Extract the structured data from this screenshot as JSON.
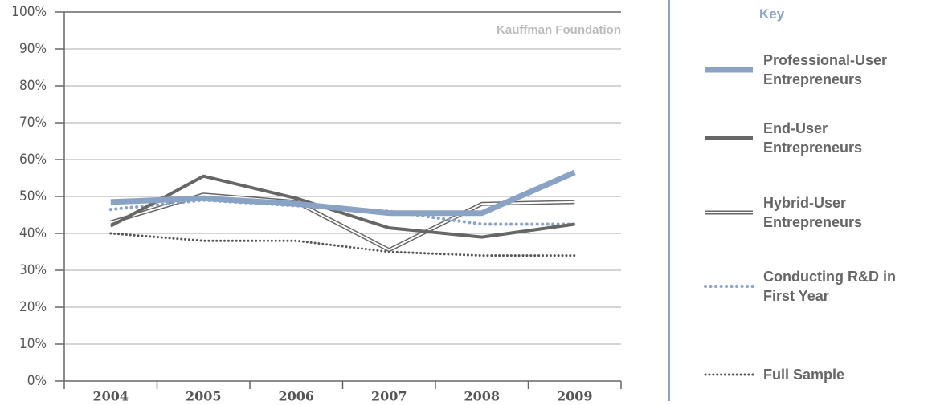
{
  "chart_data": {
    "type": "line",
    "annotation": "Kauffman Foundation",
    "legend_title": "Key",
    "categories": [
      "2004",
      "2005",
      "2006",
      "2007",
      "2008",
      "2009"
    ],
    "series": [
      {
        "name": "Professional-User Entrepreneurs",
        "color": "#8aa2c4",
        "style": "solid",
        "width": 7,
        "values": [
          48.5,
          49.5,
          48,
          45.5,
          45.5,
          56.5
        ]
      },
      {
        "name": "End-User Entrepreneurs",
        "color": "#666666",
        "style": "solid",
        "width": 4,
        "values": [
          42,
          55.5,
          49.5,
          41.5,
          39,
          42.5
        ]
      },
      {
        "name": "Hybrid-User Entrepreneurs",
        "color": "#666666",
        "style": "double",
        "width": 5,
        "values": [
          43,
          50.5,
          48.5,
          35.5,
          48,
          48.5
        ]
      },
      {
        "name": "Conducting R&D in First Year",
        "color": "#8aa2c4",
        "style": "dotted",
        "width": 4,
        "values": [
          46.5,
          49,
          47.5,
          46,
          42.5,
          42.5
        ]
      },
      {
        "name": "Full Sample",
        "color": "#555555",
        "style": "dotted",
        "width": 3,
        "values": [
          40,
          38,
          38,
          35,
          34,
          34
        ]
      }
    ],
    "ylim": [
      0,
      100
    ],
    "yticks": [
      {
        "value": 0,
        "label": "0%"
      },
      {
        "value": 10,
        "label": "10%"
      },
      {
        "value": 20,
        "label": "20%"
      },
      {
        "value": 30,
        "label": "30%"
      },
      {
        "value": 40,
        "label": "40%"
      },
      {
        "value": 50,
        "label": "50%"
      },
      {
        "value": 60,
        "label": "60%"
      },
      {
        "value": 70,
        "label": "70%"
      },
      {
        "value": 80,
        "label": "80%"
      },
      {
        "value": 90,
        "label": "90%"
      },
      {
        "value": 100,
        "label": "100%"
      }
    ],
    "grid": true
  }
}
